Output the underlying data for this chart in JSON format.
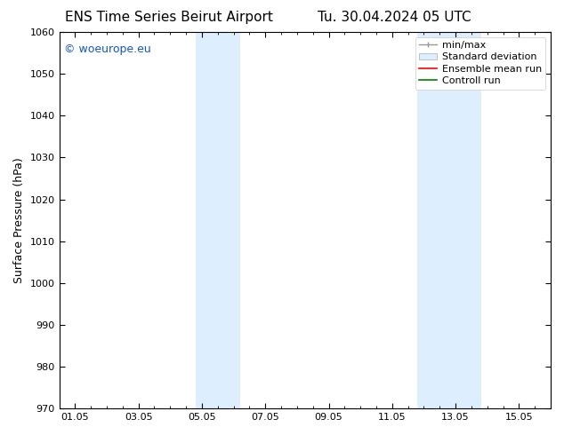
{
  "title_left": "ENS Time Series Beirut Airport",
  "title_right": "Tu. 30.04.2024 05 UTC",
  "ylabel": "Surface Pressure (hPa)",
  "ylim": [
    970,
    1060
  ],
  "yticks": [
    970,
    980,
    990,
    1000,
    1010,
    1020,
    1030,
    1040,
    1050,
    1060
  ],
  "xlim_start": -0.5,
  "xlim_end": 15.0,
  "xtick_labels": [
    "01.05",
    "03.05",
    "05.05",
    "07.05",
    "09.05",
    "11.05",
    "13.05",
    "15.05"
  ],
  "xtick_positions": [
    0,
    2,
    4,
    6,
    8,
    10,
    12,
    14
  ],
  "shaded_bands": [
    {
      "x_start": 3.8,
      "x_end": 5.2,
      "color": "#ddeeff"
    },
    {
      "x_start": 10.8,
      "x_end": 12.8,
      "color": "#ddeeff"
    }
  ],
  "watermark_text": "© woeurope.eu",
  "watermark_color": "#1155cc",
  "background_color": "#ffffff",
  "legend_labels": [
    "min/max",
    "Standard deviation",
    "Ensemble mean run",
    "Controll run"
  ],
  "legend_colors_line": [
    "#aaaaaa",
    "#cccccc",
    "#ff0000",
    "#008000"
  ],
  "font_size_title": 11,
  "font_size_axis": 9,
  "font_size_ticks": 8,
  "font_size_watermark": 9,
  "font_size_legend": 8
}
